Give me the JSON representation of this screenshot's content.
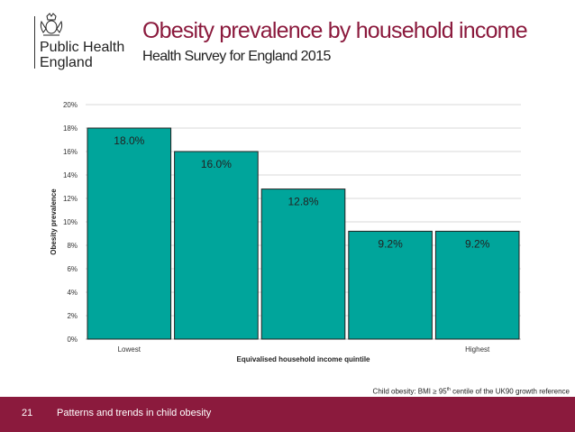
{
  "header": {
    "org_name": "Public Health\nEngland",
    "title": "Obesity prevalence by household income",
    "subtitle": "Health Survey for England 2015"
  },
  "chart_data": {
    "type": "bar",
    "categories": [
      "Lowest",
      "",
      "",
      "",
      "Highest"
    ],
    "values": [
      18.0,
      16.0,
      12.8,
      9.2,
      9.2
    ],
    "data_labels": [
      "18.0%",
      "16.0%",
      "12.8%",
      "9.2%",
      "9.2%"
    ],
    "xlabel": "Equivalised household income quintile",
    "ylabel": "Obesity prevalence",
    "ylim": [
      0,
      20
    ],
    "yticks": [
      "0%",
      "2%",
      "4%",
      "6%",
      "8%",
      "10%",
      "12%",
      "14%",
      "16%",
      "18%",
      "20%"
    ],
    "grid": true,
    "legend": "none",
    "bar_color": "#00a59b"
  },
  "footnote": {
    "prefix": "Child obesity: BMI ≥ 95",
    "sup": "th",
    "suffix": " centile of the UK90 growth reference"
  },
  "footer": {
    "slide_number": "21",
    "text": "Patterns and trends in child obesity"
  },
  "colors": {
    "accent": "#8b1a3d",
    "bar": "#00a59b"
  }
}
